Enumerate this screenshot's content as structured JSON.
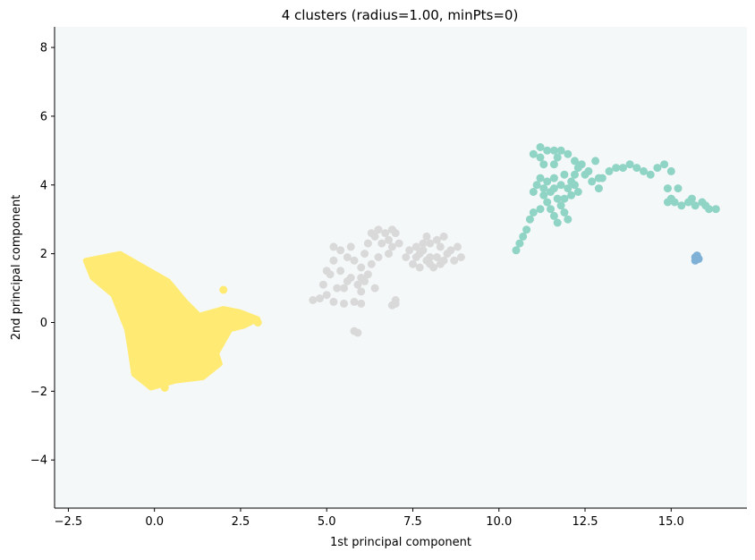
{
  "chart_data": {
    "type": "scatter",
    "title": "4 clusters (radius=1.00, minPts=0)",
    "xlabel": "1st principal component",
    "ylabel": "2nd principal component",
    "xlim": [
      -2.9,
      17.2
    ],
    "ylim": [
      -5.4,
      8.6
    ],
    "xticks": [
      -2.5,
      0.0,
      2.5,
      5.0,
      7.5,
      10.0,
      12.5,
      15.0
    ],
    "xtick_labels": [
      "−2.5",
      "0.0",
      "2.5",
      "5.0",
      "7.5",
      "10.0",
      "12.5",
      "15.0"
    ],
    "yticks": [
      -4,
      -2,
      0,
      2,
      4,
      6,
      8
    ],
    "ytick_labels": [
      "−4",
      "−2",
      "0",
      "2",
      "4",
      "6",
      "8"
    ],
    "grid": false,
    "plot_background": "#f5f8f9",
    "series": [
      {
        "color": "#ffeb73",
        "regions": [
          {
            "polygon": [
              [
                -2.0,
                1.8
              ],
              [
                -1.0,
                2.0
              ],
              [
                -0.3,
                1.6
              ],
              [
                0.4,
                1.2
              ],
              [
                0.9,
                0.6
              ],
              [
                1.3,
                0.2
              ],
              [
                2.0,
                0.4
              ],
              [
                2.5,
                0.3
              ],
              [
                3.0,
                0.1
              ],
              [
                2.6,
                -0.1
              ],
              [
                2.2,
                -0.2
              ],
              [
                1.8,
                -0.9
              ],
              [
                1.9,
                -1.2
              ],
              [
                1.4,
                -1.6
              ],
              [
                0.6,
                -1.7
              ],
              [
                -0.1,
                -1.9
              ],
              [
                -0.6,
                -1.5
              ],
              [
                -0.7,
                -0.8
              ],
              [
                -0.8,
                -0.2
              ],
              [
                -1.0,
                0.3
              ],
              [
                -1.2,
                0.8
              ],
              [
                -1.8,
                1.3
              ]
            ]
          }
        ],
        "points": [
          [
            2.0,
            0.95
          ],
          [
            3.0,
            0.0
          ],
          [
            2.7,
            0.05
          ],
          [
            -1.9,
            1.75
          ],
          [
            0.3,
            -1.9
          ]
        ]
      },
      {
        "color": "#d9d9d9",
        "points": [
          [
            4.6,
            0.65
          ],
          [
            4.8,
            0.7
          ],
          [
            5.0,
            0.8
          ],
          [
            5.2,
            0.6
          ],
          [
            5.5,
            0.55
          ],
          [
            5.8,
            0.6
          ],
          [
            6.0,
            0.55
          ],
          [
            5.9,
            -0.3
          ],
          [
            5.8,
            -0.25
          ],
          [
            4.9,
            1.1
          ],
          [
            5.0,
            1.5
          ],
          [
            5.2,
            1.8
          ],
          [
            5.1,
            1.4
          ],
          [
            5.4,
            1.5
          ],
          [
            5.6,
            1.2
          ],
          [
            5.3,
            1.0
          ],
          [
            5.5,
            1.0
          ],
          [
            5.7,
            1.3
          ],
          [
            5.9,
            1.1
          ],
          [
            6.0,
            1.6
          ],
          [
            6.1,
            2.0
          ],
          [
            6.2,
            2.3
          ],
          [
            6.3,
            2.6
          ],
          [
            6.4,
            2.5
          ],
          [
            6.6,
            2.3
          ],
          [
            6.5,
            2.7
          ],
          [
            6.7,
            2.6
          ],
          [
            6.9,
            2.7
          ],
          [
            7.0,
            2.6
          ],
          [
            6.8,
            2.4
          ],
          [
            6.9,
            2.2
          ],
          [
            7.1,
            2.3
          ],
          [
            6.8,
            2.0
          ],
          [
            6.5,
            1.9
          ],
          [
            6.3,
            1.7
          ],
          [
            6.2,
            1.4
          ],
          [
            6.1,
            1.2
          ],
          [
            6.0,
            0.9
          ],
          [
            5.8,
            1.8
          ],
          [
            5.6,
            1.9
          ],
          [
            5.7,
            2.2
          ],
          [
            5.4,
            2.1
          ],
          [
            5.2,
            2.2
          ],
          [
            6.4,
            1.0
          ],
          [
            6.0,
            1.3
          ],
          [
            7.0,
            0.65
          ],
          [
            7.0,
            0.55
          ],
          [
            6.9,
            0.5
          ],
          [
            7.3,
            1.9
          ],
          [
            7.4,
            2.1
          ],
          [
            7.6,
            2.2
          ],
          [
            7.7,
            2.0
          ],
          [
            7.8,
            2.3
          ],
          [
            7.9,
            2.5
          ],
          [
            7.8,
            2.1
          ],
          [
            8.0,
            2.3
          ],
          [
            8.2,
            2.4
          ],
          [
            8.3,
            2.2
          ],
          [
            8.4,
            2.5
          ],
          [
            8.6,
            2.1
          ],
          [
            8.8,
            2.2
          ],
          [
            8.9,
            1.9
          ],
          [
            8.7,
            1.8
          ],
          [
            8.3,
            1.7
          ],
          [
            8.1,
            1.6
          ],
          [
            8.0,
            1.7
          ],
          [
            7.9,
            1.8
          ],
          [
            8.2,
            1.9
          ],
          [
            8.5,
            2.0
          ],
          [
            7.6,
            1.9
          ],
          [
            7.5,
            1.7
          ],
          [
            8.0,
            1.9
          ],
          [
            8.4,
            1.8
          ],
          [
            7.7,
            1.6
          ]
        ]
      },
      {
        "color": "#8fd4c4",
        "points": [
          [
            10.5,
            2.1
          ],
          [
            10.6,
            2.3
          ],
          [
            10.7,
            2.5
          ],
          [
            10.8,
            2.7
          ],
          [
            10.9,
            3.0
          ],
          [
            11.0,
            3.2
          ],
          [
            11.2,
            3.3
          ],
          [
            11.4,
            3.5
          ],
          [
            11.3,
            3.7
          ],
          [
            11.5,
            3.8
          ],
          [
            11.7,
            3.6
          ],
          [
            11.8,
            3.4
          ],
          [
            11.9,
            3.2
          ],
          [
            12.0,
            3.0
          ],
          [
            11.7,
            2.9
          ],
          [
            11.6,
            3.1
          ],
          [
            11.5,
            3.3
          ],
          [
            11.9,
            3.6
          ],
          [
            12.0,
            3.9
          ],
          [
            12.1,
            4.1
          ],
          [
            11.8,
            4.0
          ],
          [
            11.6,
            3.9
          ],
          [
            11.4,
            4.1
          ],
          [
            11.2,
            4.2
          ],
          [
            11.1,
            4.0
          ],
          [
            11.3,
            3.9
          ],
          [
            11.0,
            3.8
          ],
          [
            11.6,
            4.2
          ],
          [
            11.9,
            4.3
          ],
          [
            12.2,
            4.0
          ],
          [
            12.3,
            3.8
          ],
          [
            12.1,
            3.7
          ],
          [
            12.2,
            4.3
          ],
          [
            12.5,
            4.3
          ],
          [
            12.7,
            4.1
          ],
          [
            12.9,
            3.9
          ],
          [
            13.0,
            4.2
          ],
          [
            13.2,
            4.4
          ],
          [
            13.4,
            4.5
          ],
          [
            13.6,
            4.5
          ],
          [
            13.8,
            4.6
          ],
          [
            14.0,
            4.5
          ],
          [
            14.2,
            4.4
          ],
          [
            14.4,
            4.3
          ],
          [
            14.6,
            4.5
          ],
          [
            14.8,
            4.6
          ],
          [
            15.0,
            4.4
          ],
          [
            14.9,
            3.9
          ],
          [
            15.0,
            3.6
          ],
          [
            14.9,
            3.5
          ],
          [
            15.1,
            3.5
          ],
          [
            15.3,
            3.4
          ],
          [
            15.5,
            3.5
          ],
          [
            15.7,
            3.4
          ],
          [
            15.9,
            3.5
          ],
          [
            16.1,
            3.3
          ],
          [
            16.3,
            3.3
          ],
          [
            16.0,
            3.4
          ],
          [
            15.6,
            3.6
          ],
          [
            15.2,
            3.9
          ],
          [
            11.2,
            5.1
          ],
          [
            11.4,
            5.0
          ],
          [
            11.6,
            5.0
          ],
          [
            11.8,
            5.0
          ],
          [
            12.0,
            4.9
          ],
          [
            12.2,
            4.7
          ],
          [
            12.3,
            4.5
          ],
          [
            12.4,
            4.6
          ],
          [
            12.6,
            4.4
          ],
          [
            11.2,
            4.8
          ],
          [
            11.3,
            4.6
          ],
          [
            11.6,
            4.6
          ],
          [
            11.7,
            4.8
          ],
          [
            11.0,
            4.9
          ],
          [
            12.8,
            4.7
          ],
          [
            12.9,
            4.2
          ]
        ]
      },
      {
        "color": "#7fb1d6",
        "points": [
          [
            15.7,
            1.9
          ],
          [
            15.7,
            1.8
          ],
          [
            15.75,
            1.95
          ],
          [
            15.8,
            1.85
          ]
        ]
      }
    ]
  }
}
